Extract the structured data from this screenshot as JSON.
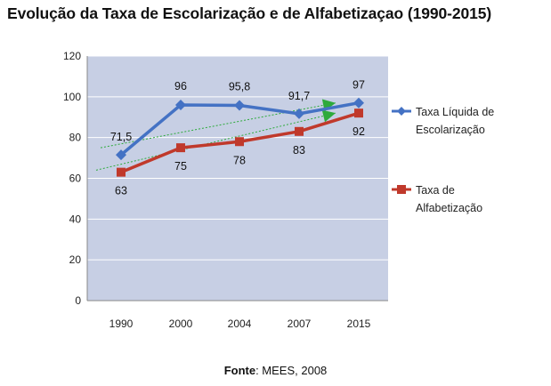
{
  "header": {
    "title": "Evolução da Taxa de Escolarização e de Alfabetizaçao (1990-2015)"
  },
  "chart_data": {
    "type": "line",
    "title": "Evolução da Taxa de Escolarização e de Alfabetizaçao (1990-2015)",
    "categories": [
      "1990",
      "2000",
      "2004",
      "2007",
      "2015"
    ],
    "ylim": [
      0,
      120
    ],
    "yticks": [
      0,
      20,
      40,
      60,
      80,
      100,
      120
    ],
    "ytick_labels": [
      "0",
      "20",
      "40",
      "60",
      "80",
      "100",
      "120"
    ],
    "grid": true,
    "legend_position": "right",
    "series": [
      {
        "name": "Taxa Líquida de Escolarização",
        "legend_lines": [
          "Taxa Líquida de",
          "Escolarização"
        ],
        "values": [
          71.5,
          96,
          95.8,
          91.7,
          97
        ],
        "labels": [
          "71,5",
          "96",
          "95,8",
          "91,7",
          "97"
        ],
        "color": "#4472c4",
        "marker": "diamond"
      },
      {
        "name": "Taxa de Alfabetização",
        "legend_lines": [
          "Taxa de",
          "Alfabetização"
        ],
        "values": [
          63,
          75,
          78,
          83,
          92
        ],
        "labels": [
          "63",
          "75",
          "78",
          "83",
          "92"
        ],
        "color": "#c0392b",
        "marker": "square"
      }
    ],
    "trend_color": "#2eaa3c",
    "plot_background": "#c7cfe4"
  },
  "footer": {
    "source_label": "Fonte",
    "source_value": ": MEES, 2008"
  }
}
